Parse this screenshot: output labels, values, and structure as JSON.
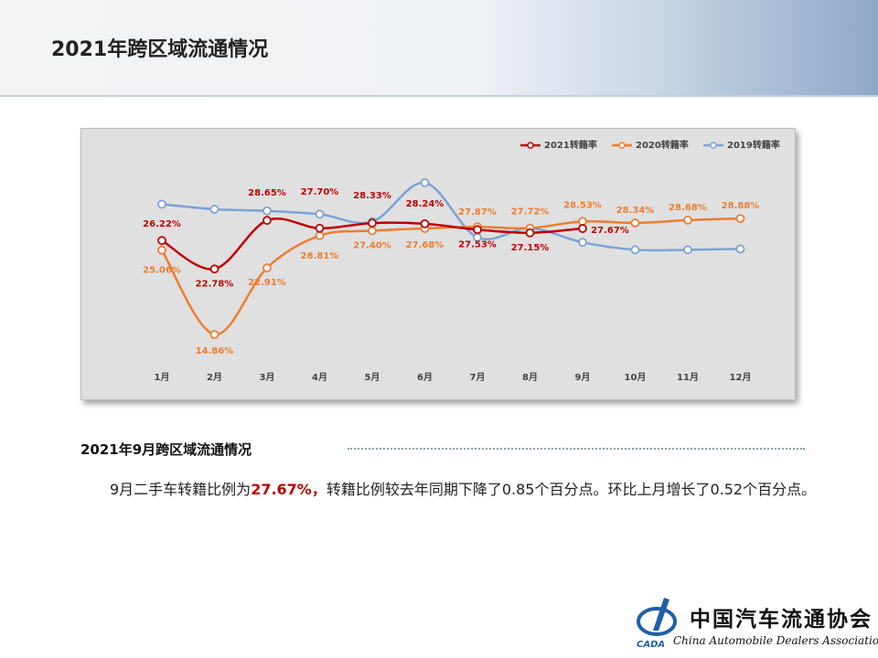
{
  "header": {
    "title": "2021年跨区域流通情况"
  },
  "chart_data": {
    "type": "line",
    "categories": [
      "1月",
      "2月",
      "3月",
      "4月",
      "5月",
      "6月",
      "7月",
      "8月",
      "9月",
      "10月",
      "11月",
      "12月"
    ],
    "series": [
      {
        "name": "2021转籍率",
        "color": "#c00000",
        "values": [
          26.22,
          22.78,
          28.65,
          27.7,
          28.33,
          28.24,
          27.53,
          27.15,
          27.67,
          null,
          null,
          null
        ],
        "value_labels": [
          "26.22%",
          "22.78%",
          "28.65%",
          "27.70%",
          "28.33%",
          "28.24%",
          "27.53%",
          "27.15%",
          "27.67%",
          null,
          null,
          null
        ]
      },
      {
        "name": "2020转籍率",
        "color": "#ed7d31",
        "values": [
          25.06,
          14.86,
          22.91,
          26.81,
          27.4,
          27.68,
          27.87,
          27.72,
          28.53,
          28.34,
          28.68,
          28.88
        ],
        "value_labels": [
          "25.06%",
          "14.86%",
          "22.91%",
          "26.81%",
          "27.40%",
          "27.68%",
          "27.87%",
          "27.72%",
          "28.53%",
          "28.34%",
          "28.68%",
          "28.88%"
        ]
      },
      {
        "name": "2019转籍率",
        "color": "#7ba3d4",
        "values": [
          30.6,
          30.0,
          29.8,
          29.4,
          28.5,
          33.2,
          26.6,
          27.7,
          26.0,
          25.1,
          25.1,
          25.2
        ]
      }
    ]
  },
  "section": {
    "title": "2021年9月跨区域流通情况",
    "text_before": "9月二手车转籍比例为",
    "highlight": "27.67%，",
    "text_after": "转籍比例较去年同期下降了0.85个百分点。环比上月增长了0.52个百分点。"
  },
  "logo": {
    "name_cn": "中国汽车流通协会",
    "name_en": "China Automobile Dealers Association",
    "abbr": "CADA"
  }
}
